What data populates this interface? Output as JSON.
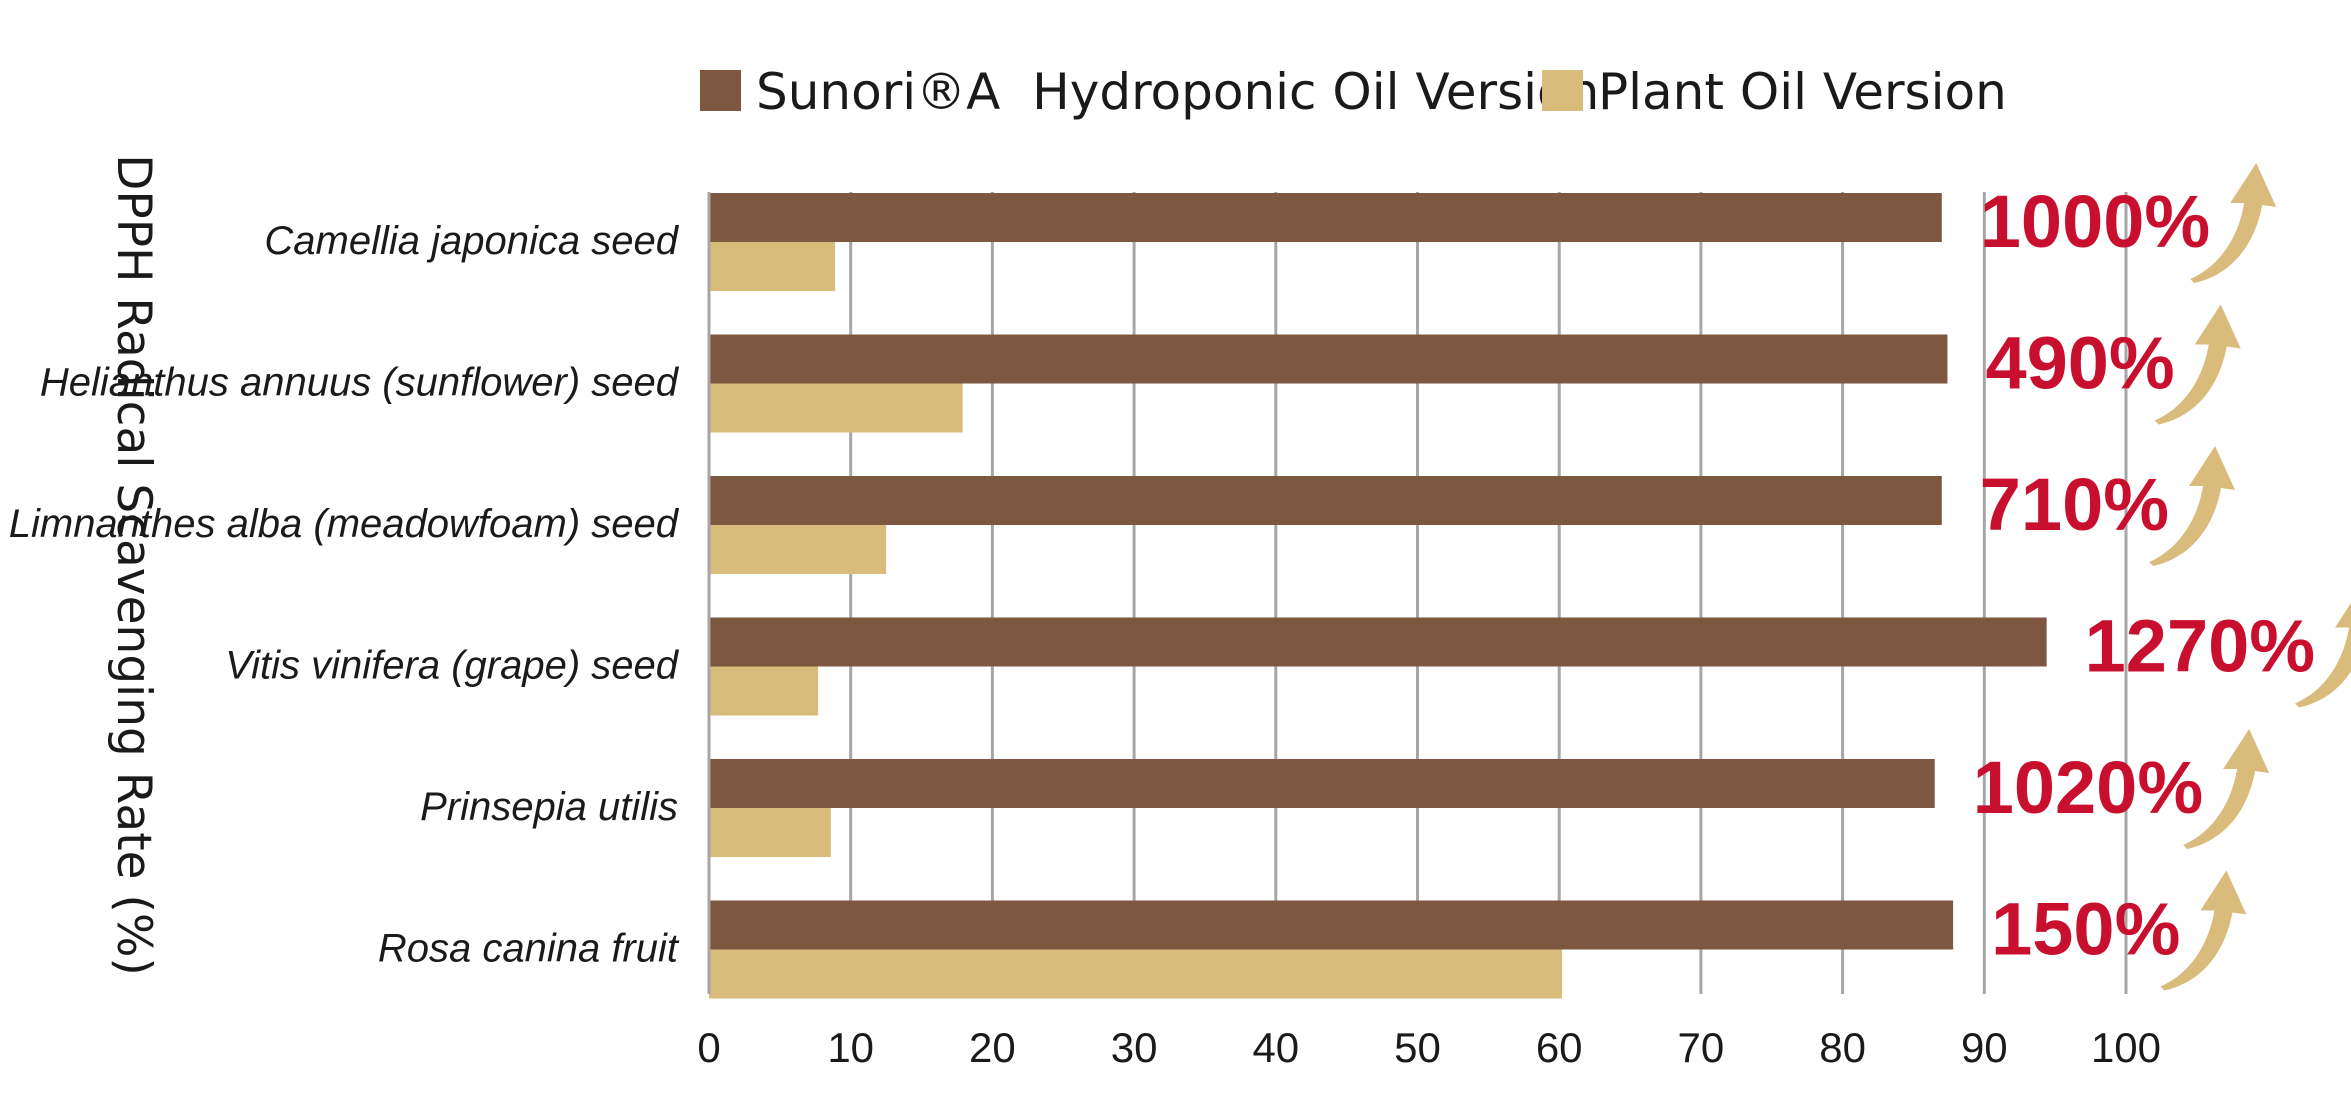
{
  "chart_data": {
    "type": "bar",
    "orientation": "horizontal",
    "title": "",
    "xlabel": "",
    "ylabel": "DPPH Radical Scavenging Rate (%)",
    "xlim": [
      0,
      100
    ],
    "x_ticks": [
      "0",
      "10",
      "20",
      "30",
      "40",
      "50",
      "60",
      "70",
      "80",
      "90",
      "100"
    ],
    "grid": "vertical",
    "legend_position": "top",
    "categories": [
      "Camellia japonica seed",
      "Helianthus annuus (sunflower) seed",
      "Limnanthes alba (meadowfoam) seed",
      "Vitis vinifera (grape) seed",
      "Prinsepia utilis",
      "Rosa canina fruit"
    ],
    "series": [
      {
        "name": "Sunori®A  Hydroponic Oil Version",
        "color": "#7d5740",
        "values": [
          87.0,
          87.4,
          87.0,
          94.4,
          86.5,
          87.8
        ]
      },
      {
        "name": "Plant Oil Version",
        "color": "#d9bb7c",
        "values": [
          8.9,
          17.9,
          12.5,
          7.7,
          8.6,
          60.2
        ]
      }
    ],
    "annotations": [
      "1000%",
      "490%",
      "710%",
      "1270%",
      "1020%",
      "150%"
    ],
    "annotation_color": "#c8102e",
    "arrow_color": "#d9bb7c",
    "arrow_icon": "curved-up-arrow-icon"
  }
}
